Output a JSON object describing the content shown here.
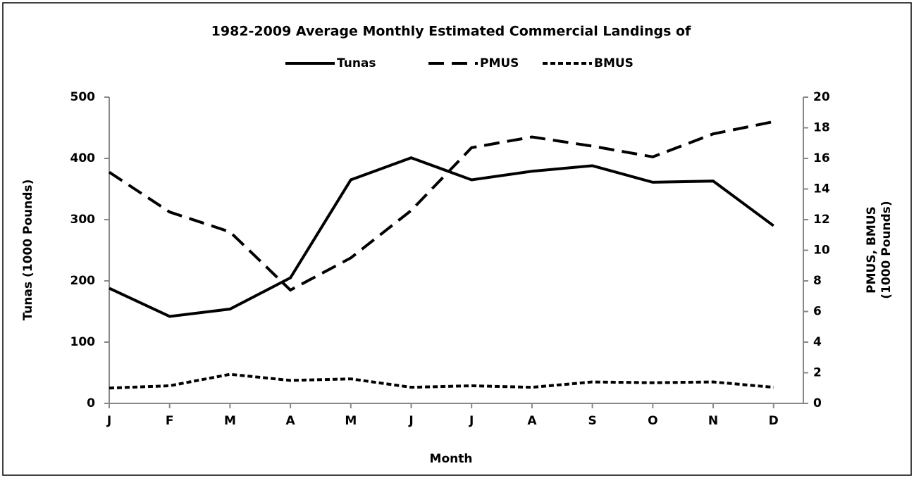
{
  "chart_data": {
    "type": "line",
    "title": "1982-2009 Average Monthly Estimated Commercial Landings of",
    "xlabel": "Month",
    "ylabel": "Tunas (1000 Pounds)",
    "y2label": [
      "PMUS, BMUS",
      "(1000 Pounds)"
    ],
    "categories": [
      "J",
      "F",
      "M",
      "A",
      "M",
      "J",
      "J",
      "A",
      "S",
      "O",
      "N",
      "D"
    ],
    "ylim": [
      0,
      500
    ],
    "yticks": [
      0,
      100,
      200,
      300,
      400,
      500
    ],
    "y2lim": [
      0,
      20
    ],
    "y2ticks": [
      0,
      2,
      4,
      6,
      8,
      10,
      12,
      14,
      16,
      18,
      20
    ],
    "legend": "top",
    "series": [
      {
        "name": "Tunas",
        "color": "#000000",
        "dash": "solid",
        "values": [
          188,
          142,
          154,
          205,
          365,
          401,
          365,
          379,
          388,
          361,
          363,
          290
        ]
      },
      {
        "name": "PMUS",
        "color": "#000000",
        "dash": "dashed",
        "axis": "y2",
        "values": [
          15.1,
          12.5,
          11.2,
          7.4,
          9.5,
          12.6,
          16.7,
          17.4,
          16.8,
          16.1,
          17.6,
          18.4
        ]
      },
      {
        "name": "BMUS",
        "color": "#000000",
        "dash": "dotted",
        "axis": "y2",
        "values": [
          1.0,
          1.15,
          1.9,
          1.5,
          1.6,
          1.05,
          1.15,
          1.05,
          1.4,
          1.35,
          1.4,
          1.05
        ]
      }
    ]
  }
}
